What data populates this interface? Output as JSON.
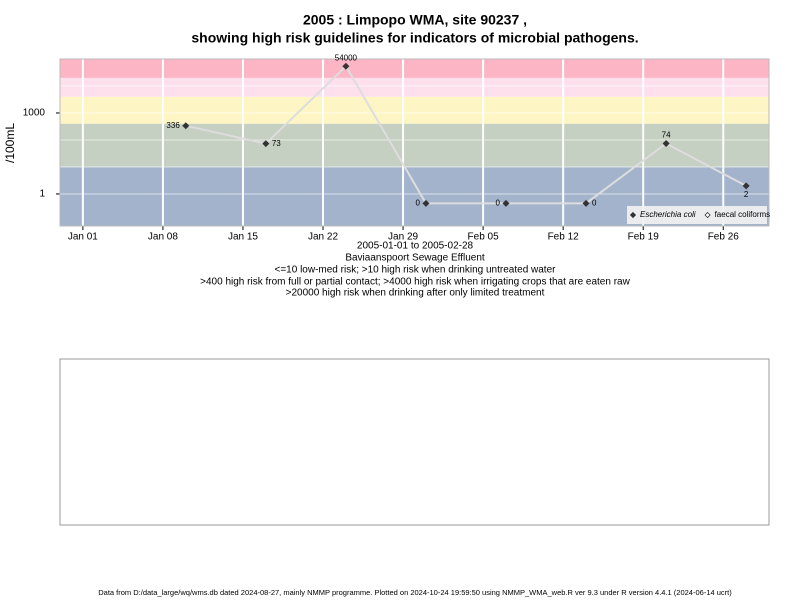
{
  "chart_data": {
    "type": "line",
    "title": "2005 : Limpopo WMA, site 90237 ,",
    "subtitle": "showing high risk guidelines for indicators of microbial pathogens.",
    "y_label": "/100mL",
    "date_range": "2005-01-01 to 2005-02-28",
    "site_name": "Baviaanspoort Sewage Effluent",
    "notes": [
      "<=10 low-med risk; >10 high risk when drinking untreated water",
      ">400 high risk from full or partial contact; >4000 high risk when irrigating crops that are eaten raw",
      ">20000 high risk when drinking after only limited treatment"
    ],
    "footer": "Data from D:/data_large/wq/wms.db dated 2024-08-27, mainly NMMP programme. Plotted on 2024-10-24 19:59:50 using NMMP_WMA_web.R ver 9.3 under R version 4.4.1 (2024-06-14 ucrt)",
    "log_y": true,
    "x": [
      "2005-01-10",
      "2005-01-17",
      "2005-01-24",
      "2005-01-31",
      "2005-02-07",
      "2005-02-14",
      "2005-02-21",
      "2005-02-28"
    ],
    "series": [
      {
        "name": "Escherichia coli",
        "color": "#333333",
        "line_color": "#dddddd",
        "values": [
          336,
          73,
          54000,
          0.45,
          0.45,
          0.45,
          74,
          2
        ],
        "value_labels": [
          "336",
          "73",
          "54000",
          "0",
          "0",
          "0",
          "74",
          "2"
        ],
        "value_label_positions": [
          "left",
          "right",
          "above",
          "left",
          "left",
          "right",
          "above",
          "below"
        ]
      },
      {
        "name": "faecal coliforms",
        "color": "#333333",
        "values": [
          null,
          null,
          null,
          null,
          null,
          null,
          null,
          null
        ]
      }
    ],
    "xlim": [
      "2004-12-30",
      "2005-03-02"
    ],
    "xticks": [
      {
        "value": "2005-01-01",
        "label": "Jan 01"
      },
      {
        "value": "2005-01-08",
        "label": "Jan 08"
      },
      {
        "value": "2005-01-15",
        "label": "Jan 15"
      },
      {
        "value": "2005-01-22",
        "label": "Jan 22"
      },
      {
        "value": "2005-01-29",
        "label": "Jan 29"
      },
      {
        "value": "2005-02-05",
        "label": "Feb 05"
      },
      {
        "value": "2005-02-12",
        "label": "Feb 12"
      },
      {
        "value": "2005-02-19",
        "label": "Feb 19"
      },
      {
        "value": "2005-02-26",
        "label": "Feb 26"
      }
    ],
    "ylim": [
      0.065,
      100000
    ],
    "yticks": [
      1,
      1000
    ],
    "y_grid": [
      1,
      10,
      100,
      1000,
      10000
    ],
    "bands": [
      {
        "from": 0.065,
        "to": 10,
        "color": "#a3b3cc"
      },
      {
        "from": 10,
        "to": 400,
        "color": "#c5cfc2"
      },
      {
        "from": 400,
        "to": 4000,
        "color": "#fdf6c4"
      },
      {
        "from": 4000,
        "to": 20000,
        "color": "#fde0ec"
      },
      {
        "from": 20000,
        "to": 100000,
        "color": "#fbb5c5"
      }
    ],
    "legend": "bottom-right"
  }
}
